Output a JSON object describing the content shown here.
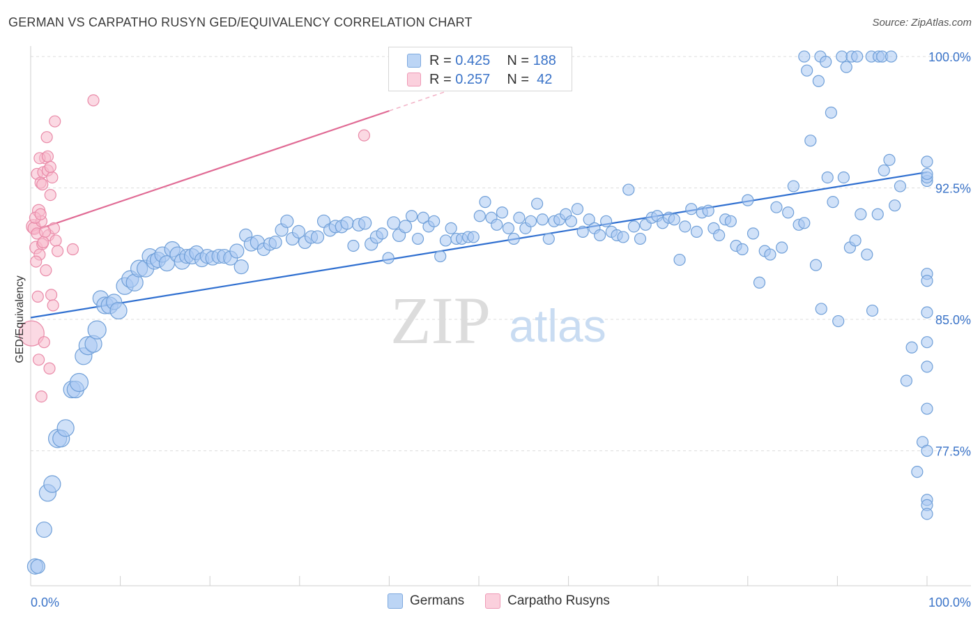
{
  "title": "GERMAN VS CARPATHO RUSYN GED/EQUIVALENCY CORRELATION CHART",
  "source": "Source: ZipAtlas.com",
  "watermark": {
    "zip": "ZIP",
    "atlas": "atlas"
  },
  "legend_stats": [
    {
      "r_label": "R = ",
      "r_value": "0.425",
      "n_label": "N = ",
      "n_value": "188",
      "color": "#a9c8f2"
    },
    {
      "r_label": "R = ",
      "r_value": "0.257",
      "n_label": "N = ",
      "n_value": " 42",
      "color": "#f8b9cc"
    }
  ],
  "chart_data": {
    "type": "scatter",
    "title": "GERMAN VS CARPATHO RUSYN GED/EQUIVALENCY CORRELATION CHART",
    "xlabel": "",
    "ylabel": "GED/Equivalency",
    "xlim": [
      0,
      100
    ],
    "ylim": [
      69.8,
      100.6
    ],
    "x_tick_labels": [
      {
        "value": 0,
        "label": "0.0%"
      },
      {
        "value": 100,
        "label": "100.0%"
      }
    ],
    "y_tick_labels": [
      {
        "value": 77.5,
        "label": "77.5%"
      },
      {
        "value": 85.0,
        "label": "85.0%"
      },
      {
        "value": 92.5,
        "label": "92.5%"
      },
      {
        "value": 100.0,
        "label": "100.0%"
      }
    ],
    "grid": true,
    "series": [
      {
        "name": "Germans",
        "color": "#a9c8f2",
        "stroke": "#6f9fd8",
        "trend": {
          "x": [
            0,
            100
          ],
          "y": [
            85.1,
            93.4
          ],
          "color": "#2f6fd0"
        },
        "points": [
          [
            0.5,
            70.9,
            11
          ],
          [
            0.8,
            70.9,
            10
          ],
          [
            1.5,
            73.0,
            11
          ],
          [
            1.9,
            75.1,
            12
          ],
          [
            2.4,
            75.6,
            12
          ],
          [
            3.0,
            78.2,
            13
          ],
          [
            3.4,
            78.2,
            12
          ],
          [
            3.9,
            78.8,
            12
          ],
          [
            4.6,
            81.0,
            12
          ],
          [
            5.0,
            81.0,
            12
          ],
          [
            5.4,
            81.4,
            13
          ],
          [
            5.9,
            82.9,
            12
          ],
          [
            6.4,
            83.5,
            13
          ],
          [
            7.0,
            83.6,
            12
          ],
          [
            7.4,
            84.4,
            13
          ],
          [
            7.8,
            86.2,
            11
          ],
          [
            8.3,
            85.8,
            12
          ],
          [
            8.8,
            85.8,
            12
          ],
          [
            9.3,
            86.0,
            11
          ],
          [
            9.8,
            85.5,
            12
          ],
          [
            10.5,
            86.9,
            12
          ],
          [
            11.1,
            87.3,
            12
          ],
          [
            11.6,
            87.1,
            12
          ],
          [
            12.1,
            87.9,
            12
          ],
          [
            12.8,
            87.9,
            12
          ],
          [
            13.3,
            88.6,
            11
          ],
          [
            13.8,
            88.3,
            11
          ],
          [
            14.2,
            88.4,
            11
          ],
          [
            14.7,
            88.7,
            11
          ],
          [
            15.2,
            88.2,
            11
          ],
          [
            15.8,
            89.0,
            11
          ],
          [
            16.4,
            88.7,
            11
          ],
          [
            16.9,
            88.3,
            11
          ],
          [
            17.4,
            88.6,
            10
          ],
          [
            18.0,
            88.6,
            11
          ],
          [
            18.5,
            88.8,
            10
          ],
          [
            19.1,
            88.4,
            10
          ],
          [
            19.7,
            88.6,
            10
          ],
          [
            20.3,
            88.5,
            10
          ],
          [
            21.0,
            88.6,
            10
          ],
          [
            21.6,
            88.6,
            10
          ],
          [
            22.3,
            88.5,
            10
          ],
          [
            23.0,
            88.9,
            10
          ],
          [
            23.5,
            88.0,
            10
          ],
          [
            24.0,
            89.8,
            9
          ],
          [
            24.6,
            89.3,
            10
          ],
          [
            25.3,
            89.4,
            10
          ],
          [
            26.0,
            89.0,
            9
          ],
          [
            26.7,
            89.3,
            9
          ],
          [
            27.3,
            89.4,
            9
          ],
          [
            28.0,
            90.1,
            9
          ],
          [
            28.6,
            90.6,
            9
          ],
          [
            29.2,
            89.6,
            9
          ],
          [
            29.9,
            90.0,
            9
          ],
          [
            30.6,
            89.4,
            9
          ],
          [
            31.3,
            89.7,
            9
          ],
          [
            32.0,
            89.7,
            9
          ],
          [
            32.7,
            90.6,
            9
          ],
          [
            33.4,
            90.1,
            9
          ],
          [
            34.0,
            90.3,
            9
          ],
          [
            34.7,
            90.3,
            9
          ],
          [
            35.3,
            90.5,
            9
          ],
          [
            36.0,
            89.2,
            8
          ],
          [
            36.6,
            90.4,
            9
          ],
          [
            37.3,
            90.5,
            9
          ],
          [
            38.0,
            89.3,
            9
          ],
          [
            38.6,
            89.7,
            9
          ],
          [
            39.2,
            89.9,
            8
          ],
          [
            39.9,
            88.5,
            8
          ],
          [
            40.5,
            90.5,
            9
          ],
          [
            41.1,
            89.8,
            9
          ],
          [
            41.8,
            90.3,
            9
          ],
          [
            42.5,
            90.9,
            8
          ],
          [
            43.2,
            89.6,
            8
          ],
          [
            43.8,
            90.8,
            8
          ],
          [
            44.4,
            90.3,
            8
          ],
          [
            45.0,
            90.6,
            8
          ],
          [
            45.7,
            88.6,
            8
          ],
          [
            46.3,
            89.5,
            8
          ],
          [
            46.9,
            90.2,
            8
          ],
          [
            47.5,
            89.6,
            8
          ],
          [
            48.1,
            89.6,
            8
          ],
          [
            48.8,
            89.7,
            8
          ],
          [
            49.4,
            89.7,
            8
          ],
          [
            50.1,
            90.9,
            8
          ],
          [
            50.7,
            91.7,
            8
          ],
          [
            51.4,
            90.8,
            8
          ],
          [
            52.0,
            90.4,
            8
          ],
          [
            52.6,
            91.1,
            8
          ],
          [
            53.3,
            90.2,
            8
          ],
          [
            53.9,
            89.6,
            8
          ],
          [
            54.5,
            90.8,
            8
          ],
          [
            55.2,
            90.2,
            8
          ],
          [
            55.8,
            90.6,
            8
          ],
          [
            56.5,
            91.6,
            8
          ],
          [
            57.1,
            90.7,
            8
          ],
          [
            57.8,
            89.6,
            8
          ],
          [
            58.4,
            90.6,
            8
          ],
          [
            59.0,
            90.7,
            8
          ],
          [
            59.7,
            91.0,
            8
          ],
          [
            60.3,
            90.6,
            8
          ],
          [
            61.0,
            91.3,
            8
          ],
          [
            61.6,
            90.0,
            8
          ],
          [
            62.3,
            90.7,
            8
          ],
          [
            62.9,
            90.2,
            8
          ],
          [
            63.5,
            89.8,
            8
          ],
          [
            64.2,
            90.6,
            8
          ],
          [
            64.8,
            90.0,
            8
          ],
          [
            65.4,
            89.8,
            8
          ],
          [
            66.1,
            89.7,
            8
          ],
          [
            66.7,
            92.4,
            8
          ],
          [
            67.3,
            90.3,
            8
          ],
          [
            68.0,
            89.6,
            8
          ],
          [
            68.6,
            90.4,
            8
          ],
          [
            69.3,
            90.8,
            8
          ],
          [
            69.9,
            90.9,
            8
          ],
          [
            70.5,
            90.5,
            8
          ],
          [
            71.2,
            90.8,
            8
          ],
          [
            71.8,
            90.7,
            8
          ],
          [
            72.4,
            88.4,
            8
          ],
          [
            73.0,
            90.3,
            8
          ],
          [
            73.7,
            91.3,
            8
          ],
          [
            74.3,
            90.0,
            8
          ],
          [
            74.9,
            91.1,
            8
          ],
          [
            75.6,
            91.2,
            8
          ],
          [
            76.2,
            90.2,
            8
          ],
          [
            76.8,
            89.8,
            8
          ],
          [
            77.5,
            90.7,
            8
          ],
          [
            78.1,
            90.6,
            8
          ],
          [
            78.7,
            89.2,
            8
          ],
          [
            79.4,
            89.0,
            8
          ],
          [
            80.0,
            91.8,
            8
          ],
          [
            80.6,
            89.9,
            8
          ],
          [
            81.3,
            87.1,
            8
          ],
          [
            81.9,
            88.9,
            8
          ],
          [
            82.5,
            88.7,
            8
          ],
          [
            83.2,
            91.4,
            8
          ],
          [
            83.8,
            89.1,
            8
          ],
          [
            84.5,
            91.1,
            8
          ],
          [
            85.1,
            92.6,
            8
          ],
          [
            85.7,
            90.4,
            8
          ],
          [
            86.3,
            90.5,
            8
          ],
          [
            87.0,
            95.2,
            8
          ],
          [
            87.6,
            88.1,
            8
          ],
          [
            88.2,
            85.6,
            8
          ],
          [
            88.9,
            93.1,
            8
          ],
          [
            89.5,
            91.7,
            8
          ],
          [
            90.1,
            84.9,
            8
          ],
          [
            90.7,
            93.1,
            8
          ],
          [
            91.4,
            89.1,
            8
          ],
          [
            92.0,
            89.5,
            8
          ],
          [
            92.6,
            91.0,
            8
          ],
          [
            93.3,
            88.7,
            8
          ],
          [
            93.9,
            85.5,
            8
          ],
          [
            94.5,
            91.0,
            8
          ],
          [
            95.2,
            93.5,
            8
          ],
          [
            95.8,
            94.1,
            8
          ],
          [
            96.4,
            91.5,
            8
          ],
          [
            97.0,
            92.6,
            8
          ],
          [
            97.7,
            81.5,
            8
          ],
          [
            98.3,
            83.4,
            8
          ],
          [
            98.9,
            76.3,
            8
          ],
          [
            99.5,
            78.0,
            8
          ],
          [
            100.0,
            92.9,
            8
          ],
          [
            100.0,
            93.1,
            8
          ],
          [
            100.0,
            85.4,
            8
          ],
          [
            100.0,
            82.3,
            8
          ],
          [
            100.0,
            77.5,
            8
          ],
          [
            100.0,
            74.7,
            8
          ],
          [
            100.0,
            74.4,
            8
          ],
          [
            100.0,
            87.6,
            8
          ],
          [
            100.0,
            83.7,
            8
          ],
          [
            100.0,
            87.2,
            8
          ],
          [
            100.0,
            79.9,
            8
          ],
          [
            100.0,
            93.3,
            8
          ],
          [
            100.0,
            73.9,
            8
          ],
          [
            100.0,
            94.0,
            8
          ]
        ]
      },
      {
        "name": "Carpatho Rusyns",
        "color": "#f8b9cc",
        "stroke": "#e98aa8",
        "trend": {
          "x": [
            0,
            40
          ],
          "y": [
            90.0,
            96.9
          ],
          "dashed_to": [
            48,
            98.3
          ],
          "color": "#e06a94"
        },
        "points": [
          [
            0.1,
            84.2,
            18
          ],
          [
            0.3,
            90.3,
            10
          ],
          [
            0.4,
            90.2,
            9
          ],
          [
            0.6,
            89.1,
            9
          ],
          [
            0.7,
            93.3,
            8
          ],
          [
            0.8,
            86.3,
            8
          ],
          [
            0.9,
            91.2,
            9
          ],
          [
            1.0,
            88.7,
            8
          ],
          [
            1.1,
            92.8,
            8
          ],
          [
            1.2,
            90.6,
            8
          ],
          [
            1.3,
            89.3,
            8
          ],
          [
            1.4,
            93.4,
            8
          ],
          [
            1.5,
            83.7,
            8
          ],
          [
            1.6,
            94.2,
            8
          ],
          [
            1.7,
            87.8,
            8
          ],
          [
            1.8,
            95.4,
            8
          ],
          [
            1.9,
            93.5,
            8
          ],
          [
            2.0,
            89.8,
            8
          ],
          [
            2.1,
            82.2,
            8
          ],
          [
            2.2,
            92.1,
            8
          ],
          [
            2.3,
            86.4,
            8
          ],
          [
            2.4,
            93.1,
            8
          ],
          [
            2.5,
            85.8,
            8
          ],
          [
            2.6,
            90.2,
            8
          ],
          [
            2.7,
            96.3,
            8
          ],
          [
            2.8,
            89.5,
            8
          ],
          [
            3.0,
            88.9,
            8
          ],
          [
            1.2,
            80.6,
            8
          ],
          [
            0.5,
            90.8,
            8
          ],
          [
            0.6,
            88.3,
            8
          ],
          [
            1.0,
            94.2,
            8
          ],
          [
            1.9,
            94.3,
            8
          ],
          [
            1.3,
            92.7,
            8
          ],
          [
            0.7,
            89.9,
            8
          ],
          [
            1.6,
            90.0,
            8
          ],
          [
            1.1,
            91.0,
            8
          ],
          [
            0.9,
            82.7,
            8
          ],
          [
            4.7,
            89.0,
            8
          ],
          [
            7.0,
            97.5,
            8
          ],
          [
            37.2,
            95.5,
            8
          ],
          [
            1.4,
            89.4,
            8
          ],
          [
            2.2,
            93.7,
            8
          ]
        ]
      }
    ]
  }
}
